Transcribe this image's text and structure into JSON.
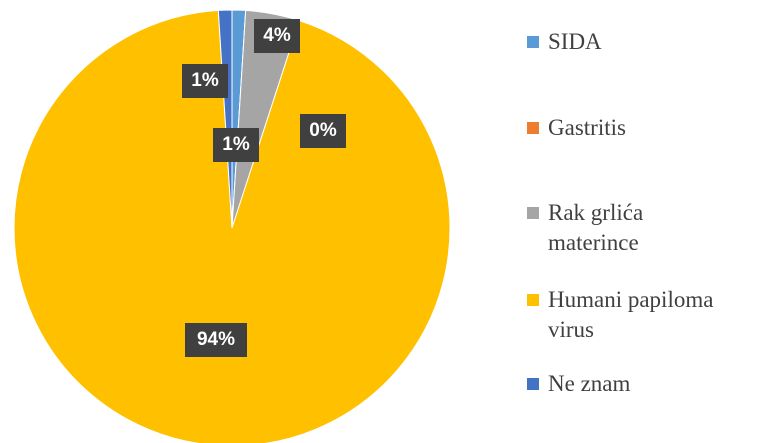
{
  "chart_data": {
    "type": "pie",
    "categories": [
      "SIDA",
      "Gastritis",
      "Rak grlića materince",
      "Humani papiloma virus",
      "Ne znam"
    ],
    "values": [
      1,
      0,
      4,
      94,
      1
    ],
    "value_labels": [
      "1%",
      "0%",
      "4%",
      "94%",
      "1%"
    ],
    "colors": [
      "#5b9bd5",
      "#ed7d31",
      "#a5a5a5",
      "#ffc000",
      "#4472c4"
    ],
    "legend": "right"
  }
}
